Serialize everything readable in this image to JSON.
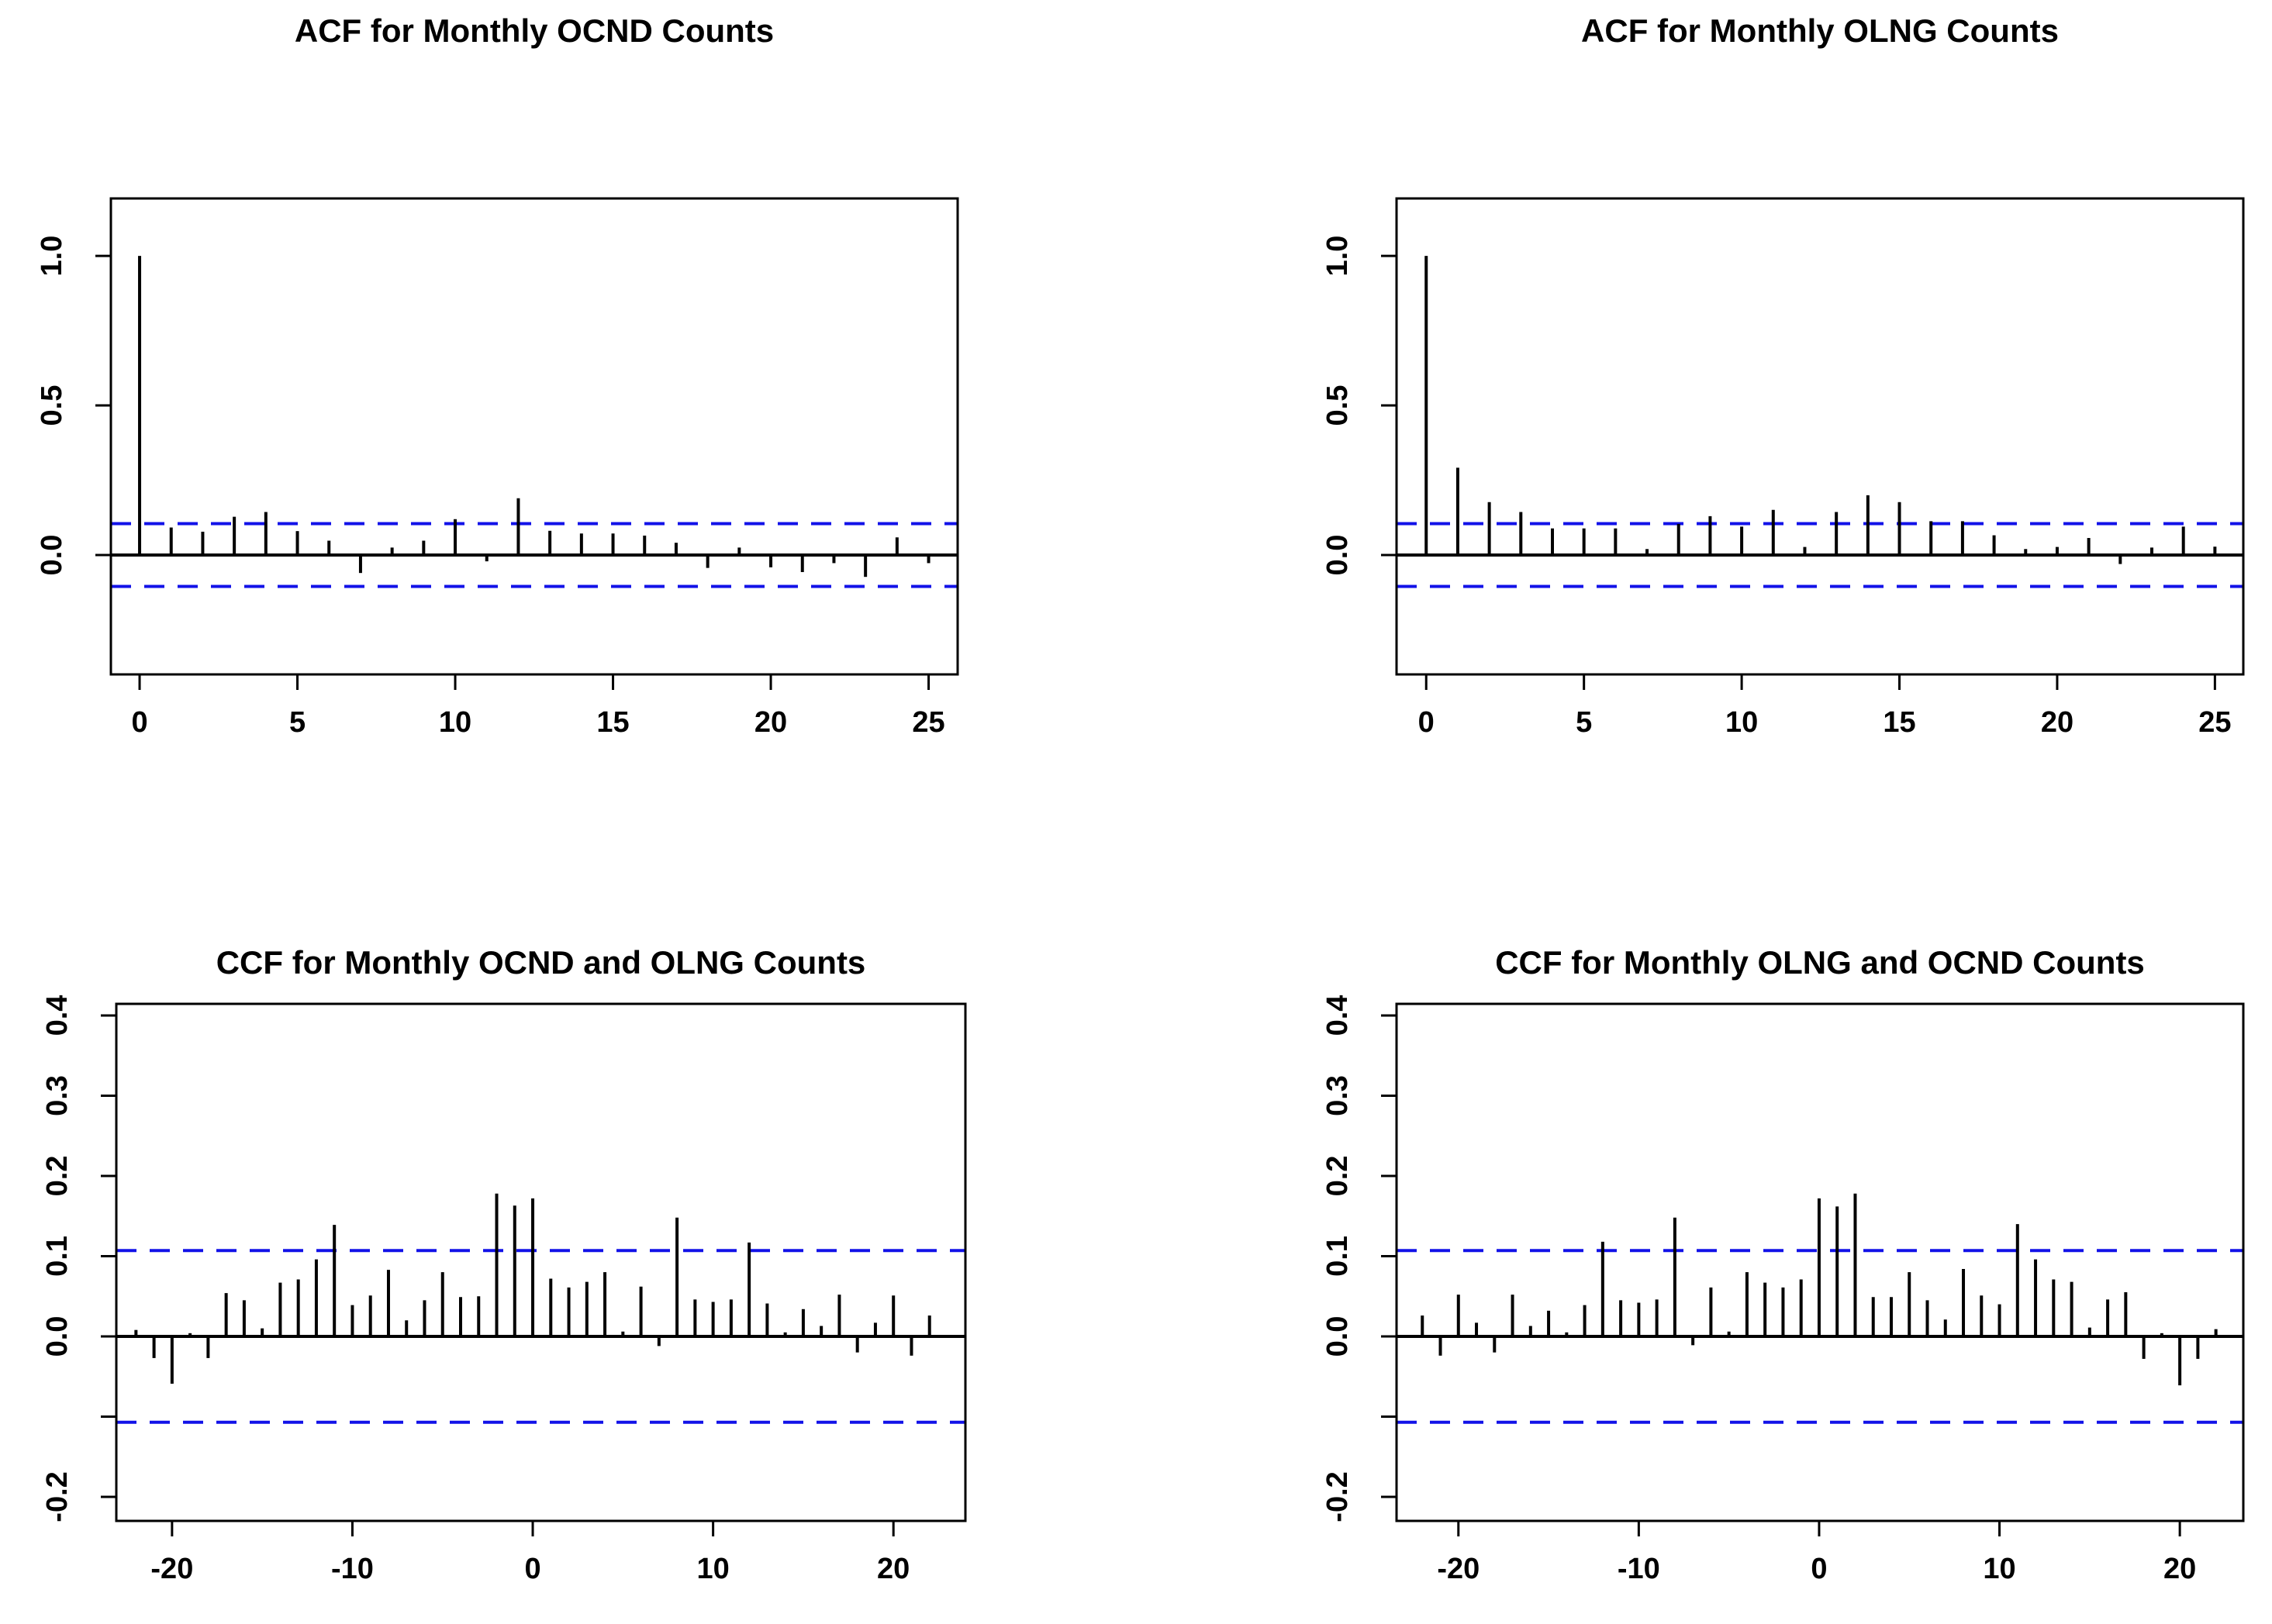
{
  "page": {
    "background": "#ffffff"
  },
  "colors": {
    "axis": "#000000",
    "bar": "#000000",
    "confidence_line": "#1212e8",
    "title": "#000000"
  },
  "chart_data": [
    {
      "id": "acf-ocnd",
      "type": "bar",
      "title": "ACF for Monthly OCND Counts",
      "xlabel": "",
      "ylabel": "",
      "lags": [
        0,
        1,
        2,
        3,
        4,
        5,
        6,
        7,
        8,
        9,
        10,
        11,
        12,
        13,
        14,
        15,
        16,
        17,
        18,
        19,
        20,
        21,
        22,
        23,
        24,
        25
      ],
      "values": [
        1.0,
        0.092,
        0.078,
        0.128,
        0.144,
        0.08,
        0.048,
        -0.06,
        0.025,
        0.048,
        0.12,
        -0.021,
        0.19,
        0.081,
        0.072,
        0.072,
        0.065,
        0.041,
        -0.043,
        0.025,
        -0.041,
        -0.057,
        -0.027,
        -0.073,
        0.059,
        -0.027
      ],
      "confidence_bounds": [
        -0.105,
        0.105
      ],
      "xticks": [
        {
          "v": 0,
          "label": "0"
        },
        {
          "v": 5,
          "label": "5"
        },
        {
          "v": 10,
          "label": "10"
        },
        {
          "v": 15,
          "label": "15"
        },
        {
          "v": 20,
          "label": "20"
        },
        {
          "v": 25,
          "label": "25"
        }
      ],
      "yticks": [
        {
          "v": 0.0,
          "label": "0.0"
        },
        {
          "v": 0.5,
          "label": "0.5"
        },
        {
          "v": 1.0,
          "label": "1.0"
        }
      ],
      "xlim": [
        -0.91,
        25.92
      ],
      "ylim": [
        -0.399,
        1.192
      ],
      "grid": false,
      "legend": null
    },
    {
      "id": "acf-olng",
      "type": "bar",
      "title": "ACF for Monthly OLNG Counts",
      "xlabel": "",
      "ylabel": "",
      "lags": [
        0,
        1,
        2,
        3,
        4,
        5,
        6,
        7,
        8,
        9,
        10,
        11,
        12,
        13,
        14,
        15,
        16,
        17,
        18,
        19,
        20,
        21,
        22,
        23,
        24,
        25
      ],
      "values": [
        1.0,
        0.292,
        0.177,
        0.144,
        0.089,
        0.089,
        0.089,
        0.02,
        0.104,
        0.13,
        0.095,
        0.151,
        0.027,
        0.144,
        0.2,
        0.177,
        0.113,
        0.113,
        0.066,
        0.02,
        0.027,
        0.057,
        -0.03,
        0.025,
        0.095,
        0.028
      ],
      "confidence_bounds": [
        -0.105,
        0.105
      ],
      "xticks": [
        {
          "v": 0,
          "label": "0"
        },
        {
          "v": 5,
          "label": "5"
        },
        {
          "v": 10,
          "label": "10"
        },
        {
          "v": 15,
          "label": "15"
        },
        {
          "v": 20,
          "label": "20"
        },
        {
          "v": 25,
          "label": "25"
        }
      ],
      "yticks": [
        {
          "v": 0.0,
          "label": "0.0"
        },
        {
          "v": 0.5,
          "label": "0.5"
        },
        {
          "v": 1.0,
          "label": "1.0"
        }
      ],
      "xlim": [
        -0.94,
        25.9
      ],
      "ylim": [
        -0.399,
        1.192
      ],
      "grid": false,
      "legend": null
    },
    {
      "id": "ccf-ocnd-olng",
      "type": "bar",
      "title": "CCF for Monthly OCND and OLNG Counts",
      "xlabel": "",
      "ylabel": "",
      "lags": [
        -22,
        -21,
        -20,
        -19,
        -18,
        -17,
        -16,
        -15,
        -14,
        -13,
        -12,
        -11,
        -10,
        -9,
        -8,
        -7,
        -6,
        -5,
        -4,
        -3,
        -2,
        -1,
        0,
        1,
        2,
        3,
        4,
        5,
        6,
        7,
        8,
        9,
        10,
        11,
        12,
        13,
        14,
        15,
        16,
        17,
        18,
        19,
        20,
        21,
        22
      ],
      "values": [
        0.008,
        -0.027,
        -0.059,
        0.004,
        -0.027,
        0.054,
        0.045,
        0.01,
        0.067,
        0.071,
        0.096,
        0.139,
        0.039,
        0.051,
        0.083,
        0.02,
        0.045,
        0.08,
        0.049,
        0.05,
        0.178,
        0.163,
        0.172,
        0.072,
        0.061,
        0.068,
        0.08,
        0.006,
        0.062,
        -0.012,
        0.148,
        0.046,
        0.043,
        0.046,
        0.117,
        0.041,
        0.005,
        0.034,
        0.013,
        0.052,
        -0.02,
        0.017,
        0.051,
        -0.024,
        0.026
      ],
      "confidence_bounds": [
        -0.107,
        0.107
      ],
      "xticks": [
        {
          "v": -20,
          "label": "-20"
        },
        {
          "v": -10,
          "label": "-10"
        },
        {
          "v": 0,
          "label": "0"
        },
        {
          "v": 10,
          "label": "10"
        },
        {
          "v": 20,
          "label": "20"
        }
      ],
      "yticks": [
        {
          "v": 0.4,
          "label": "0.4"
        },
        {
          "v": 0.3,
          "label": "0.3"
        },
        {
          "v": 0.2,
          "label": "0.2"
        },
        {
          "v": 0.1,
          "label": "0.1"
        },
        {
          "v": 0.0,
          "label": "0.0"
        },
        {
          "v": -0.1,
          "label": ""
        },
        {
          "v": -0.2,
          "label": "-0.2"
        }
      ],
      "xlim": [
        -23.09,
        23.99
      ],
      "ylim": [
        -0.23,
        0.4145
      ],
      "grid": false,
      "legend": null
    },
    {
      "id": "ccf-olng-ocnd",
      "type": "bar",
      "title": "CCF for Monthly OLNG and OCND Counts",
      "xlabel": "",
      "ylabel": "",
      "lags": [
        -22,
        -21,
        -20,
        -19,
        -18,
        -17,
        -16,
        -15,
        -14,
        -13,
        -12,
        -11,
        -10,
        -9,
        -8,
        -7,
        -6,
        -5,
        -4,
        -3,
        -2,
        -1,
        0,
        1,
        2,
        3,
        4,
        5,
        6,
        7,
        8,
        9,
        10,
        11,
        12,
        13,
        14,
        15,
        16,
        17,
        18,
        19,
        20,
        21,
        22
      ],
      "values": [
        0.026,
        -0.024,
        0.052,
        0.017,
        -0.02,
        0.052,
        0.013,
        0.032,
        0.005,
        0.039,
        0.118,
        0.045,
        0.042,
        0.046,
        0.148,
        -0.011,
        0.061,
        0.006,
        0.08,
        0.067,
        0.061,
        0.071,
        0.172,
        0.162,
        0.178,
        0.049,
        0.049,
        0.08,
        0.045,
        0.021,
        0.084,
        0.051,
        0.04,
        0.14,
        0.096,
        0.071,
        0.068,
        0.011,
        0.046,
        0.055,
        -0.028,
        0.004,
        -0.061,
        -0.028,
        0.009
      ],
      "confidence_bounds": [
        -0.107,
        0.107
      ],
      "xticks": [
        {
          "v": -20,
          "label": "-20"
        },
        {
          "v": -10,
          "label": "-10"
        },
        {
          "v": 0,
          "label": "0"
        },
        {
          "v": 10,
          "label": "10"
        },
        {
          "v": 20,
          "label": "20"
        }
      ],
      "yticks": [
        {
          "v": 0.4,
          "label": "0.4"
        },
        {
          "v": 0.3,
          "label": "0.3"
        },
        {
          "v": 0.2,
          "label": "0.2"
        },
        {
          "v": 0.1,
          "label": "0.1"
        },
        {
          "v": 0.0,
          "label": "0.0"
        },
        {
          "v": -0.1,
          "label": ""
        },
        {
          "v": -0.2,
          "label": "-0.2"
        }
      ],
      "xlim": [
        -23.43,
        23.52
      ],
      "ylim": [
        -0.23,
        0.4145
      ],
      "grid": false,
      "legend": null
    }
  ]
}
